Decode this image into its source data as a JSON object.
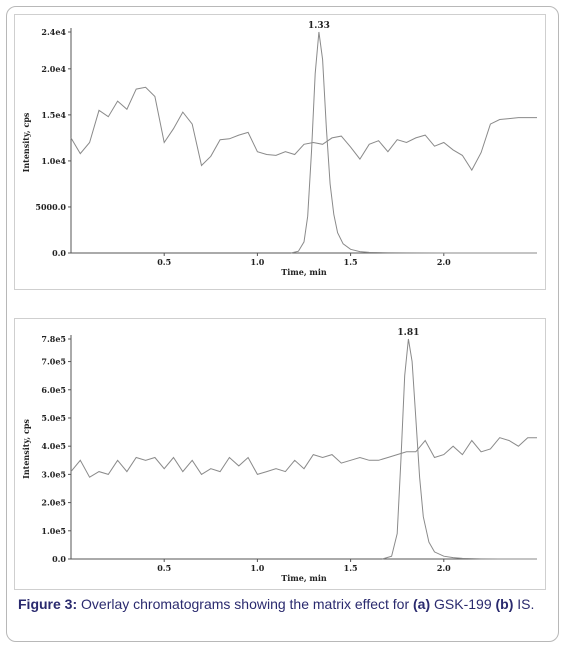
{
  "chart_data": [
    {
      "type": "line",
      "title": "",
      "xlabel": "Time, min",
      "ylabel": "Intensity, cps",
      "xlim": [
        0,
        2.5
      ],
      "ylim": [
        0,
        24000
      ],
      "x_ticks": [
        "0.5",
        "1.0",
        "1.5",
        "2.0"
      ],
      "x_tick_values": [
        0.5,
        1.0,
        1.5,
        2.0
      ],
      "y_ticks": [
        "0.0",
        "5000.0",
        "1.0e4",
        "1.5e4",
        "2.0e4",
        "2.4e4"
      ],
      "y_tick_values": [
        0,
        5000,
        10000,
        15000,
        20000,
        24000
      ],
      "annotations": [
        "1.33"
      ],
      "grid": false,
      "series": [
        {
          "x": [
            0.0,
            0.05,
            0.1,
            0.15,
            0.2,
            0.25,
            0.3,
            0.35,
            0.4,
            0.45,
            0.5,
            0.55,
            0.6,
            0.65,
            0.7,
            0.75,
            0.8,
            0.85,
            0.9,
            0.95,
            1.0,
            1.05,
            1.1,
            1.15,
            1.2,
            1.25,
            1.3,
            1.35,
            1.4,
            1.45,
            1.5,
            1.55,
            1.6,
            1.65,
            1.7,
            1.75,
            1.8,
            1.85,
            1.9,
            1.95,
            2.0,
            2.05,
            2.1,
            2.15,
            2.2,
            2.25,
            2.3,
            2.35,
            2.4,
            2.45,
            2.5
          ],
          "y": [
            12500,
            10800,
            12000,
            15500,
            14800,
            16500,
            15600,
            17800,
            18000,
            17000,
            12000,
            13500,
            15300,
            14000,
            9500,
            10500,
            12300,
            12400,
            12800,
            13100,
            11000,
            10700,
            10600,
            11000,
            10700,
            11800,
            12000,
            11800,
            12500,
            12700,
            11500,
            10200,
            11800,
            12200,
            11000,
            12300,
            12000,
            12500,
            12800,
            11600,
            12000,
            11200,
            10600,
            9000,
            10900,
            14000,
            14500,
            14600,
            14700,
            14700,
            14700
          ]
        },
        {
          "x": [
            1.18,
            1.22,
            1.25,
            1.27,
            1.29,
            1.31,
            1.33,
            1.35,
            1.37,
            1.39,
            1.41,
            1.43,
            1.46,
            1.5,
            1.55,
            1.6,
            1.7,
            1.8,
            2.0,
            2.5
          ],
          "y": [
            0,
            200,
            1200,
            4000,
            11000,
            19500,
            24000,
            21000,
            13500,
            7500,
            4200,
            2200,
            1000,
            400,
            150,
            60,
            20,
            10,
            0,
            0
          ]
        }
      ]
    },
    {
      "type": "line",
      "title": "",
      "xlabel": "Time, min",
      "ylabel": "Intensity, cps",
      "xlim": [
        0,
        2.5
      ],
      "ylim": [
        0,
        780000
      ],
      "x_ticks": [
        "0.5",
        "1.0",
        "1.5",
        "2.0"
      ],
      "x_tick_values": [
        0.5,
        1.0,
        1.5,
        2.0
      ],
      "y_ticks": [
        "0.0",
        "1.0e5",
        "2.0e5",
        "3.0e5",
        "4.0e5",
        "5.0e5",
        "6.0e5",
        "7.0e5",
        "7.8e5"
      ],
      "y_tick_values": [
        0,
        100000,
        200000,
        300000,
        400000,
        500000,
        600000,
        700000,
        780000
      ],
      "annotations": [
        "1.81"
      ],
      "grid": false,
      "series": [
        {
          "x": [
            0.0,
            0.05,
            0.1,
            0.15,
            0.2,
            0.25,
            0.3,
            0.35,
            0.4,
            0.45,
            0.5,
            0.55,
            0.6,
            0.65,
            0.7,
            0.75,
            0.8,
            0.85,
            0.9,
            0.95,
            1.0,
            1.05,
            1.1,
            1.15,
            1.2,
            1.25,
            1.3,
            1.35,
            1.4,
            1.45,
            1.5,
            1.55,
            1.6,
            1.65,
            1.7,
            1.75,
            1.8,
            1.85,
            1.9,
            1.95,
            2.0,
            2.05,
            2.1,
            2.15,
            2.2,
            2.25,
            2.3,
            2.35,
            2.4,
            2.45,
            2.5
          ],
          "y": [
            310000,
            350000,
            290000,
            310000,
            300000,
            350000,
            310000,
            360000,
            350000,
            360000,
            320000,
            360000,
            310000,
            350000,
            300000,
            320000,
            310000,
            360000,
            330000,
            360000,
            300000,
            310000,
            320000,
            310000,
            350000,
            320000,
            370000,
            360000,
            370000,
            340000,
            350000,
            360000,
            350000,
            350000,
            360000,
            370000,
            380000,
            380000,
            420000,
            360000,
            370000,
            400000,
            370000,
            420000,
            380000,
            390000,
            430000,
            420000,
            400000,
            430000,
            430000
          ]
        },
        {
          "x": [
            1.67,
            1.72,
            1.75,
            1.77,
            1.79,
            1.81,
            1.83,
            1.85,
            1.87,
            1.89,
            1.92,
            1.95,
            2.0,
            2.05,
            2.1,
            2.2,
            2.3,
            2.5
          ],
          "y": [
            0,
            10000,
            90000,
            350000,
            650000,
            780000,
            700000,
            500000,
            290000,
            150000,
            60000,
            25000,
            10000,
            5000,
            2000,
            500,
            0,
            0
          ]
        }
      ]
    }
  ],
  "caption": {
    "label": "Figure 3:",
    "text_1": " Overlay chromatograms showing the matrix effect for ",
    "part_a": "(a)",
    "text_2": " GSK-199 ",
    "part_b": "(b)",
    "text_3": " IS."
  }
}
